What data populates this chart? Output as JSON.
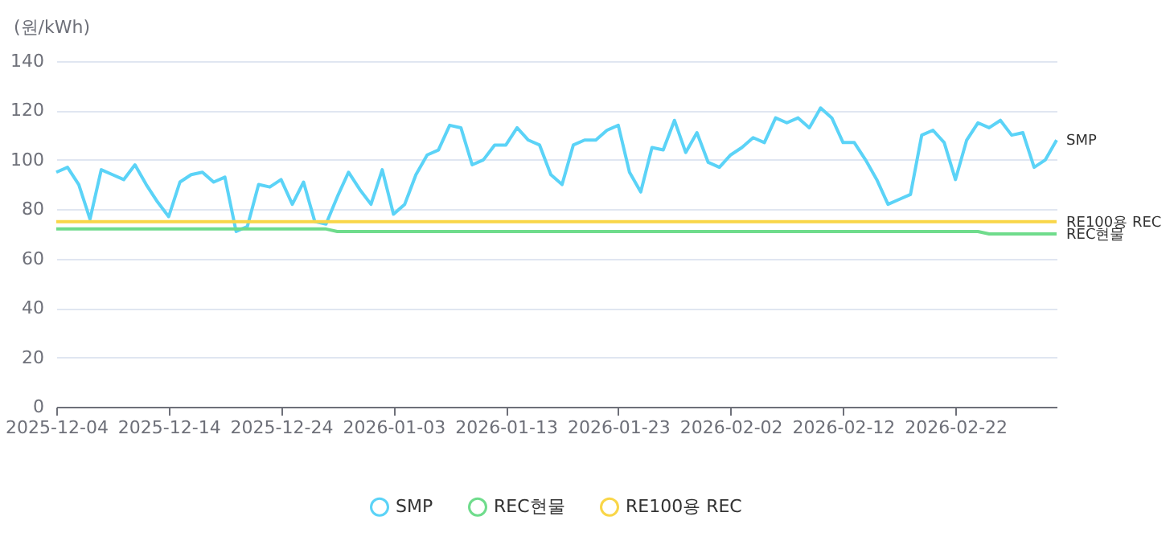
{
  "chart_data": {
    "type": "line",
    "ylabel": "(원/kWh)",
    "x": [
      "2025-12-04",
      "2025-12-05",
      "2025-12-06",
      "2025-12-07",
      "2025-12-08",
      "2025-12-09",
      "2025-12-10",
      "2025-12-11",
      "2025-12-12",
      "2025-12-13",
      "2025-12-14",
      "2025-12-15",
      "2025-12-16",
      "2025-12-17",
      "2025-12-18",
      "2025-12-19",
      "2025-12-20",
      "2025-12-21",
      "2025-12-22",
      "2025-12-23",
      "2025-12-24",
      "2025-12-25",
      "2025-12-26",
      "2025-12-27",
      "2025-12-28",
      "2025-12-29",
      "2025-12-30",
      "2025-12-31",
      "2026-01-01",
      "2026-01-02",
      "2026-01-03",
      "2026-01-04",
      "2026-01-05",
      "2026-01-06",
      "2026-01-07",
      "2026-01-08",
      "2026-01-09",
      "2026-01-10",
      "2026-01-11",
      "2026-01-12",
      "2026-01-13",
      "2026-01-14",
      "2026-01-15",
      "2026-01-16",
      "2026-01-17",
      "2026-01-18",
      "2026-01-19",
      "2026-01-20",
      "2026-01-21",
      "2026-01-22",
      "2026-01-23",
      "2026-01-24",
      "2026-01-25",
      "2026-01-26",
      "2026-01-27",
      "2026-01-28",
      "2026-01-29",
      "2026-01-30",
      "2026-01-31",
      "2026-02-01",
      "2026-02-02",
      "2026-02-03",
      "2026-02-04",
      "2026-02-05",
      "2026-02-06",
      "2026-02-07",
      "2026-02-08",
      "2026-02-09",
      "2026-02-10",
      "2026-02-11",
      "2026-02-12",
      "2026-02-13",
      "2026-02-14",
      "2026-02-15",
      "2026-02-16",
      "2026-02-17",
      "2026-02-18",
      "2026-02-19",
      "2026-02-20",
      "2026-02-21",
      "2026-02-22",
      "2026-02-23",
      "2026-02-24",
      "2026-02-25",
      "2026-02-26",
      "2026-02-27",
      "2026-02-28",
      "2026-03-01",
      "2026-03-02",
      "2026-03-03"
    ],
    "series": [
      {
        "name": "SMP",
        "color": "#5bd3f7",
        "values": [
          95,
          97,
          90,
          76,
          96,
          94,
          92,
          98,
          90,
          83,
          77,
          91,
          94,
          95,
          91,
          93,
          71,
          73,
          90,
          89,
          92,
          82,
          91,
          75,
          74,
          85,
          95,
          88,
          82,
          96,
          78,
          82,
          94,
          102,
          104,
          114,
          113,
          98,
          100,
          106,
          106,
          113,
          108,
          106,
          94,
          90,
          106,
          108,
          108,
          112,
          114,
          95,
          87,
          105,
          104,
          116,
          103,
          111,
          99,
          97,
          102,
          105,
          109,
          107,
          117,
          115,
          117,
          113,
          121,
          117,
          107,
          107,
          100,
          92,
          82,
          84,
          86,
          110,
          112,
          107,
          92,
          108,
          115,
          113,
          116,
          110,
          111,
          97,
          100,
          108
        ]
      },
      {
        "name": "REC현물",
        "color": "#6fdc8c",
        "values": [
          72,
          72,
          72,
          72,
          72,
          72,
          72,
          72,
          72,
          72,
          72,
          72,
          72,
          72,
          72,
          72,
          72,
          72,
          72,
          72,
          72,
          72,
          72,
          72,
          72,
          71,
          71,
          71,
          71,
          71,
          71,
          71,
          71,
          71,
          71,
          71,
          71,
          71,
          71,
          71,
          71,
          71,
          71,
          71,
          71,
          71,
          71,
          71,
          71,
          71,
          71,
          71,
          71,
          71,
          71,
          71,
          71,
          71,
          71,
          71,
          71,
          71,
          71,
          71,
          71,
          71,
          71,
          71,
          71,
          71,
          71,
          71,
          71,
          71,
          71,
          71,
          71,
          71,
          71,
          71,
          71,
          71,
          71,
          70,
          70,
          70,
          70,
          70,
          70,
          70
        ]
      },
      {
        "name": "RE100용 REC",
        "color": "#f9d648",
        "values": [
          75,
          75,
          75,
          75,
          75,
          75,
          75,
          75,
          75,
          75,
          75,
          75,
          75,
          75,
          75,
          75,
          75,
          75,
          75,
          75,
          75,
          75,
          75,
          75,
          75,
          75,
          75,
          75,
          75,
          75,
          75,
          75,
          75,
          75,
          75,
          75,
          75,
          75,
          75,
          75,
          75,
          75,
          75,
          75,
          75,
          75,
          75,
          75,
          75,
          75,
          75,
          75,
          75,
          75,
          75,
          75,
          75,
          75,
          75,
          75,
          75,
          75,
          75,
          75,
          75,
          75,
          75,
          75,
          75,
          75,
          75,
          75,
          75,
          75,
          75,
          75,
          75,
          75,
          75,
          75,
          75,
          75,
          75,
          75,
          75,
          75,
          75,
          75,
          75,
          75
        ]
      }
    ],
    "xlim": [
      "2025-12-04",
      "2026-03-03"
    ],
    "xticks": [
      "2025-12-04",
      "2025-12-14",
      "2025-12-24",
      "2026-01-03",
      "2026-01-13",
      "2026-01-23",
      "2026-02-02",
      "2026-02-12",
      "2026-02-22"
    ],
    "ylim": [
      0,
      140
    ],
    "yticks": [
      0,
      20,
      40,
      60,
      80,
      100,
      120,
      140
    ],
    "grid": "y",
    "legend": "bottom"
  }
}
